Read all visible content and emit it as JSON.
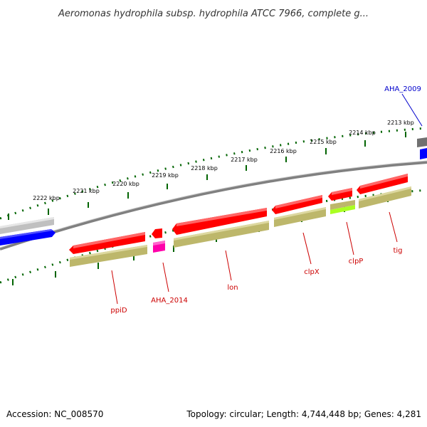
{
  "title": "Aeromonas hydrophila subsp. hydrophila ATCC 7966, complete g...",
  "footer": {
    "accession": "Accession: NC_008570",
    "summary": "Topology: circular; Length: 4,744,448 bp; Genes: 4,281"
  },
  "ticks": [
    {
      "label": "2213 kbp"
    },
    {
      "label": "2214 kbp"
    },
    {
      "label": "2215 kbp"
    },
    {
      "label": "2216 kbp"
    },
    {
      "label": "2217 kbp"
    },
    {
      "label": "2218 kbp"
    },
    {
      "label": "2219 kbp"
    },
    {
      "label": "2220 kbp"
    },
    {
      "label": "2221 kbp"
    },
    {
      "label": "2222 kbp"
    }
  ],
  "gene_labels": [
    {
      "name": "AHA_2009",
      "color": "#0000cc"
    },
    {
      "name": "tig",
      "color": "#cc0000"
    },
    {
      "name": "clpP",
      "color": "#cc0000"
    },
    {
      "name": "clpX",
      "color": "#cc0000"
    },
    {
      "name": "lon",
      "color": "#cc0000"
    },
    {
      "name": "AHA_2014",
      "color": "#cc0000"
    },
    {
      "name": "ppiD",
      "color": "#cc0000"
    }
  ],
  "colors": {
    "cds_forward": "#ff0000",
    "cds_reverse_blue": "#0000ff",
    "feature_gray": "#c0c0c0",
    "feature_dark": "#707070",
    "olive": "#bdb76b",
    "magenta": "#ff00aa",
    "lime": "#aaff22",
    "backbone": "#808080",
    "tick_green": "#006400"
  }
}
